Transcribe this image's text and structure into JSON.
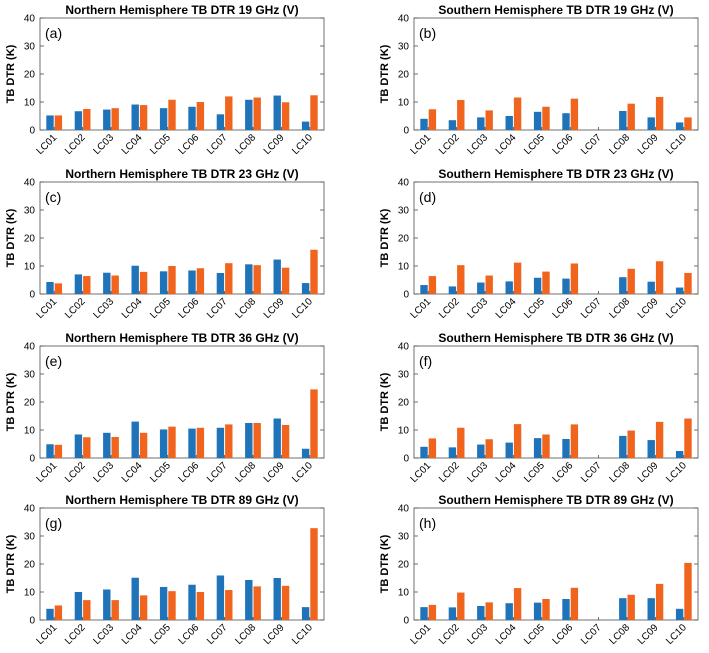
{
  "colors": {
    "series_a": "#1f73b8",
    "series_b": "#f0641e"
  },
  "chart_data": [
    {
      "type": "bar",
      "label": "(a)",
      "title": "Northern Hemisphere TB DTR 19 GHz (V)",
      "ylabel": "TB DTR (K)",
      "xlabel": "",
      "ylim": [
        0,
        40
      ],
      "yticks": [
        0,
        10,
        20,
        30,
        40
      ],
      "categories": [
        "LC01",
        "LC02",
        "LC03",
        "LC04",
        "LC05",
        "LC06",
        "LC07",
        "LC08",
        "LC09",
        "LC10"
      ],
      "series": [
        {
          "name": "series_a",
          "values": [
            5.2,
            6.7,
            7.3,
            9.1,
            7.8,
            8.3,
            5.6,
            10.8,
            12.3,
            3.0
          ]
        },
        {
          "name": "series_b",
          "values": [
            5.2,
            7.5,
            7.8,
            8.9,
            10.8,
            10.0,
            12.0,
            11.6,
            9.9,
            12.4
          ]
        }
      ]
    },
    {
      "type": "bar",
      "label": "(b)",
      "title": "Southern Hemisphere TB DTR 19 GHz (V)",
      "ylabel": "TB DTR (K)",
      "xlabel": "",
      "ylim": [
        0,
        40
      ],
      "yticks": [
        0,
        10,
        20,
        30,
        40
      ],
      "categories": [
        "LC01",
        "LC02",
        "LC03",
        "LC04",
        "LC05",
        "LC06",
        "LC07",
        "LC08",
        "LC09",
        "LC10"
      ],
      "series": [
        {
          "name": "series_a",
          "values": [
            4.0,
            3.5,
            4.5,
            5.0,
            6.5,
            6.0,
            null,
            6.8,
            4.5,
            2.7
          ]
        },
        {
          "name": "series_b",
          "values": [
            7.4,
            10.7,
            7.0,
            11.6,
            8.3,
            11.2,
            null,
            9.4,
            11.8,
            4.5
          ]
        }
      ]
    },
    {
      "type": "bar",
      "label": "(c)",
      "title": "Northern Hemisphere TB DTR 23 GHz (V)",
      "ylabel": "TB DTR (K)",
      "xlabel": "",
      "ylim": [
        0,
        40
      ],
      "yticks": [
        0,
        10,
        20,
        30,
        40
      ],
      "categories": [
        "LC01",
        "LC02",
        "LC03",
        "LC04",
        "LC05",
        "LC06",
        "LC07",
        "LC08",
        "LC09",
        "LC10"
      ],
      "series": [
        {
          "name": "series_a",
          "values": [
            4.3,
            7.0,
            7.6,
            10.1,
            8.1,
            8.4,
            7.5,
            10.6,
            12.3,
            3.9
          ]
        },
        {
          "name": "series_b",
          "values": [
            3.8,
            6.4,
            6.6,
            7.9,
            10.0,
            9.2,
            11.0,
            10.3,
            9.4,
            15.8
          ]
        }
      ]
    },
    {
      "type": "bar",
      "label": "(d)",
      "title": "Southern Hemisphere TB DTR 23 GHz (V)",
      "ylabel": "TB DTR (K)",
      "xlabel": "",
      "ylim": [
        0,
        40
      ],
      "yticks": [
        0,
        10,
        20,
        30,
        40
      ],
      "categories": [
        "LC01",
        "LC02",
        "LC03",
        "LC04",
        "LC05",
        "LC06",
        "LC07",
        "LC08",
        "LC09",
        "LC10"
      ],
      "series": [
        {
          "name": "series_a",
          "values": [
            3.2,
            2.7,
            4.1,
            4.5,
            5.8,
            5.5,
            null,
            6.0,
            4.4,
            2.3
          ]
        },
        {
          "name": "series_b",
          "values": [
            6.4,
            10.3,
            6.6,
            11.2,
            8.0,
            10.9,
            null,
            9.0,
            11.7,
            7.5
          ]
        }
      ]
    },
    {
      "type": "bar",
      "label": "(e)",
      "title": "Northern Hemisphere TB DTR 36 GHz (V)",
      "ylabel": "TB DTR (K)",
      "xlabel": "",
      "ylim": [
        0,
        40
      ],
      "yticks": [
        0,
        10,
        20,
        30,
        40
      ],
      "categories": [
        "LC01",
        "LC02",
        "LC03",
        "LC04",
        "LC05",
        "LC06",
        "LC07",
        "LC08",
        "LC09",
        "LC10"
      ],
      "series": [
        {
          "name": "series_a",
          "values": [
            4.9,
            8.4,
            9.0,
            13.0,
            10.2,
            10.5,
            10.8,
            12.5,
            14.1,
            3.3
          ]
        },
        {
          "name": "series_b",
          "values": [
            4.7,
            7.4,
            7.5,
            9.0,
            11.2,
            10.8,
            12.0,
            12.5,
            11.8,
            24.5
          ]
        }
      ]
    },
    {
      "type": "bar",
      "label": "(f)",
      "title": "Southern Hemisphere TB DTR 36 GHz (V)",
      "ylabel": "TB DTR (K)",
      "xlabel": "",
      "ylim": [
        0,
        40
      ],
      "yticks": [
        0,
        10,
        20,
        30,
        40
      ],
      "categories": [
        "LC01",
        "LC02",
        "LC03",
        "LC04",
        "LC05",
        "LC06",
        "LC07",
        "LC08",
        "LC09",
        "LC10"
      ],
      "series": [
        {
          "name": "series_a",
          "values": [
            4.0,
            3.8,
            4.8,
            5.5,
            7.1,
            6.8,
            null,
            7.9,
            6.4,
            2.5
          ]
        },
        {
          "name": "series_b",
          "values": [
            7.0,
            10.8,
            6.7,
            12.1,
            8.4,
            12.0,
            null,
            9.8,
            12.9,
            14.1
          ]
        }
      ]
    },
    {
      "type": "bar",
      "label": "(g)",
      "title": "Northern Hemisphere TB DTR 89 GHz (V)",
      "ylabel": "TB DTR (K)",
      "xlabel": "",
      "ylim": [
        0,
        40
      ],
      "yticks": [
        0,
        10,
        20,
        30,
        40
      ],
      "categories": [
        "LC01",
        "LC02",
        "LC03",
        "LC04",
        "LC05",
        "LC06",
        "LC07",
        "LC08",
        "LC09",
        "LC10"
      ],
      "series": [
        {
          "name": "series_a",
          "values": [
            4.0,
            10.0,
            10.9,
            15.1,
            11.8,
            12.6,
            15.9,
            14.3,
            15.0,
            4.6
          ]
        },
        {
          "name": "series_b",
          "values": [
            5.2,
            7.1,
            7.1,
            8.8,
            10.3,
            10.0,
            10.7,
            12.0,
            12.2,
            32.8
          ]
        }
      ]
    },
    {
      "type": "bar",
      "label": "(h)",
      "title": "Southern Hemisphere TB DTR 89 GHz (V)",
      "ylabel": "TB DTR (K)",
      "xlabel": "",
      "ylim": [
        0,
        40
      ],
      "yticks": [
        0,
        10,
        20,
        30,
        40
      ],
      "categories": [
        "LC01",
        "LC02",
        "LC03",
        "LC04",
        "LC05",
        "LC06",
        "LC07",
        "LC08",
        "LC09",
        "LC10"
      ],
      "series": [
        {
          "name": "series_a",
          "values": [
            4.6,
            4.5,
            5.0,
            6.0,
            6.2,
            7.5,
            null,
            7.8,
            7.8,
            4.0
          ]
        },
        {
          "name": "series_b",
          "values": [
            5.4,
            9.8,
            6.3,
            11.4,
            7.5,
            11.5,
            null,
            9.0,
            12.9,
            20.4
          ]
        }
      ]
    }
  ]
}
